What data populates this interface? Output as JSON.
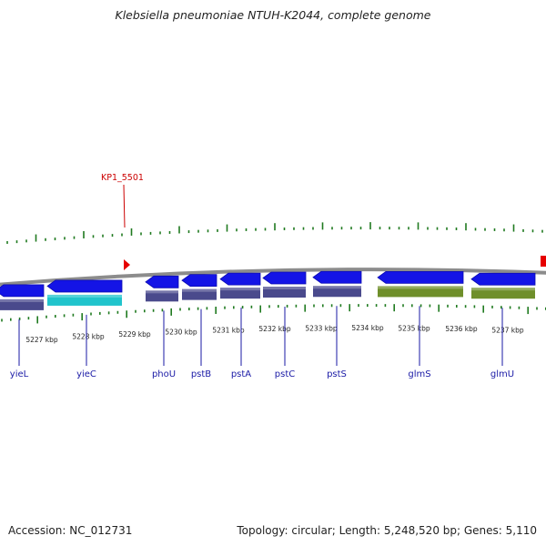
{
  "title": "Klebsiella pneumoniae NTUH-K2044, complete genome",
  "footer": {
    "accession": "Accession: NC_012731",
    "topology": "Topology: circular; Length: 5,248,520 bp; Genes: 5,110"
  },
  "colors": {
    "backbone": "#8c8c8c",
    "gene_arrow": "#1414e6",
    "gene_arrow_dark": "#0b0bb0",
    "cds_default": "#4a4a8c",
    "cds_cyan": "#21c4cc",
    "cds_olive": "#6f8f2a",
    "tick": "#1f7a1f",
    "feature_label": "#cc0000",
    "gene_label": "#1a1aa6",
    "marker": "#e60000"
  },
  "annotation": {
    "label": "KP1_5501"
  },
  "scale": {
    "ticks": [
      "5227 kbp",
      "5228 kbp",
      "5229 kbp",
      "5230 kbp",
      "5231 kbp",
      "5232 kbp",
      "5233 kbp",
      "5234 kbp",
      "5235 kbp",
      "5236 kbp",
      "5237 kbp"
    ]
  },
  "genes": [
    {
      "name": "yieL",
      "strand": "-",
      "cds_color": "default"
    },
    {
      "name": "yieC",
      "strand": "-",
      "cds_color": "cyan"
    },
    {
      "name": "phoU",
      "strand": "-",
      "cds_color": "default"
    },
    {
      "name": "pstB",
      "strand": "-",
      "cds_color": "default"
    },
    {
      "name": "pstA",
      "strand": "-",
      "cds_color": "default"
    },
    {
      "name": "pstC",
      "strand": "-",
      "cds_color": "default"
    },
    {
      "name": "pstS",
      "strand": "-",
      "cds_color": "default"
    },
    {
      "name": "glmS",
      "strand": "-",
      "cds_color": "olive"
    },
    {
      "name": "glmU",
      "strand": "-",
      "cds_color": "olive"
    }
  ]
}
